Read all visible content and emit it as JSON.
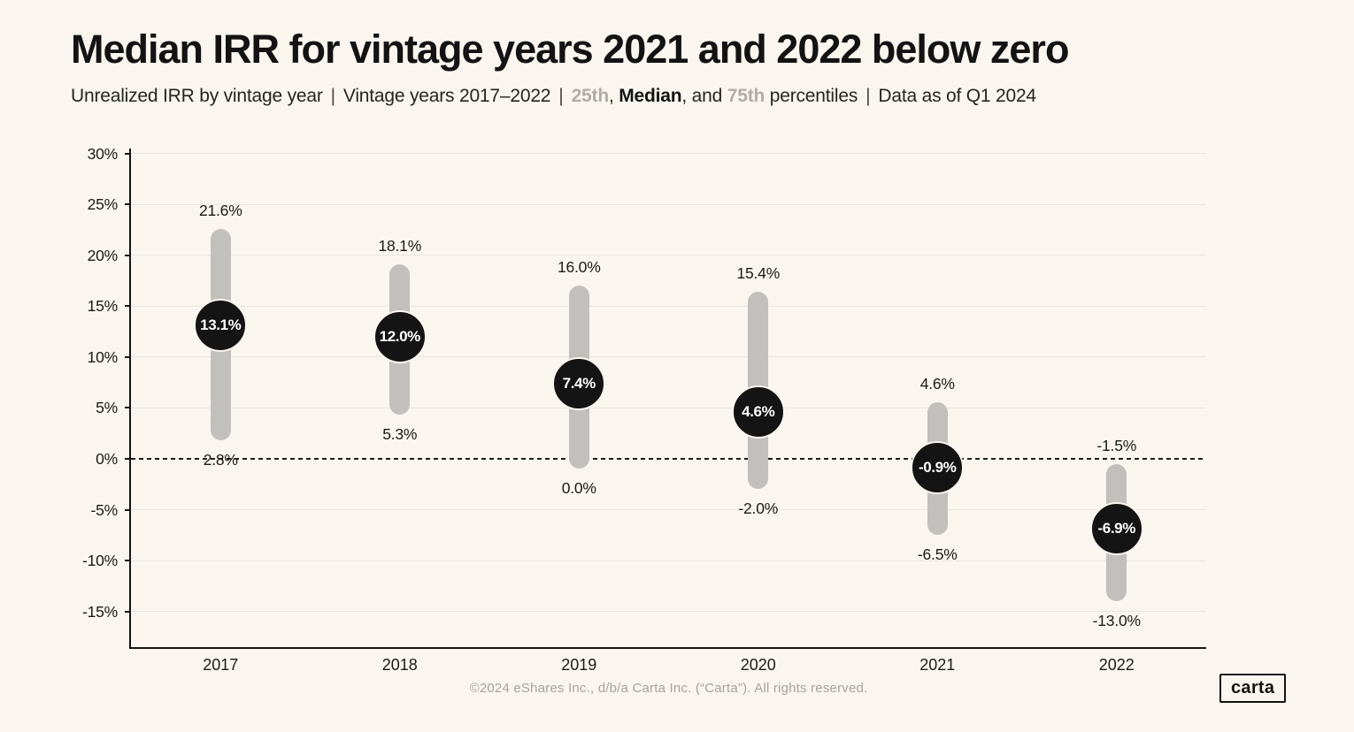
{
  "header": {
    "title": "Median IRR for vintage years 2021 and 2022 below zero",
    "subtitle_segments": [
      {
        "text": "Unrealized IRR by vintage year",
        "style": "normal"
      },
      {
        "text": "|",
        "style": "pipe"
      },
      {
        "text": "Vintage years 2017–2022",
        "style": "normal"
      },
      {
        "text": "|",
        "style": "pipe"
      },
      {
        "text": "25th",
        "style": "gray-bold"
      },
      {
        "text": ", ",
        "style": "normal"
      },
      {
        "text": "Median",
        "style": "bold"
      },
      {
        "text": ", and ",
        "style": "normal"
      },
      {
        "text": "75th",
        "style": "gray-bold"
      },
      {
        "text": " percentiles",
        "style": "normal"
      },
      {
        "text": "|",
        "style": "pipe"
      },
      {
        "text": "Data as of Q1 2024",
        "style": "normal"
      }
    ]
  },
  "chart_data": {
    "type": "range-dot",
    "title": "Median IRR for vintage years 2021 and 2022 below zero",
    "subtitle": "Unrealized IRR by vintage year | Vintage years 2017–2022 | 25th, Median, and 75th percentiles | Data as of Q1 2024",
    "categories": [
      "2017",
      "2018",
      "2019",
      "2020",
      "2021",
      "2022"
    ],
    "series": [
      {
        "name": "75th percentile",
        "values": [
          21.6,
          18.1,
          16.0,
          15.4,
          4.6,
          -1.5
        ]
      },
      {
        "name": "Median",
        "values": [
          13.1,
          12.0,
          7.4,
          4.6,
          -0.9,
          -6.9
        ]
      },
      {
        "name": "25th percentile",
        "values": [
          2.8,
          5.3,
          0.0,
          -2.0,
          -6.5,
          -13.0
        ]
      }
    ],
    "labels": {
      "p75": [
        "21.6%",
        "18.1%",
        "16.0%",
        "15.4%",
        "4.6%",
        "-1.5%"
      ],
      "median": [
        "13.1%",
        "12.0%",
        "7.4%",
        "4.6%",
        "-0.9%",
        "-6.9%"
      ],
      "p25": [
        "2.8%",
        "5.3%",
        "0.0%",
        "-2.0%",
        "-6.5%",
        "-13.0%"
      ]
    },
    "xlabel": "",
    "ylabel": "",
    "ylim": [
      -18.6,
      30.5
    ],
    "yticks": [
      {
        "value": 30,
        "label": "30%"
      },
      {
        "value": 25,
        "label": "25%"
      },
      {
        "value": 20,
        "label": "20%"
      },
      {
        "value": 15,
        "label": "15%"
      },
      {
        "value": 10,
        "label": "10%"
      },
      {
        "value": 5,
        "label": "5%"
      },
      {
        "value": 0,
        "label": "0%"
      },
      {
        "value": -5,
        "label": "-5%"
      },
      {
        "value": -10,
        "label": "-10%"
      },
      {
        "value": -15,
        "label": "-15%"
      }
    ],
    "zero_line": {
      "value": 0,
      "style": "dashed"
    },
    "grid": true,
    "legend": false
  },
  "footer": {
    "copyright": "©2024 eShares Inc., d/b/a Carta Inc. (“Carta”). All rights reserved.",
    "logo_text": "carta"
  },
  "colors": {
    "background": "#faf6ef",
    "bar": "#c2c0bd",
    "dot": "#141414",
    "grid": "#e9e6df",
    "axis": "#141414",
    "muted": "#b1ada6",
    "footerc": "#a6a29c",
    "title_text": "#131313",
    "label_text": "#1b1a18",
    "dot_label_text": "#ffffff"
  }
}
